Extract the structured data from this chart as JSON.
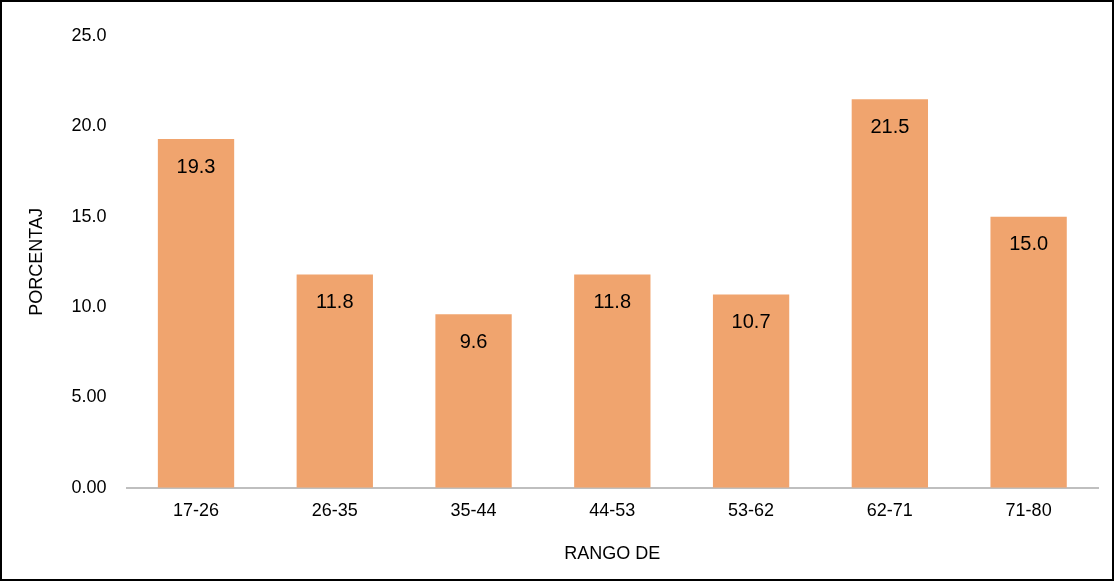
{
  "chart_data": {
    "type": "bar",
    "xlabel": "RANGO DE",
    "ylabel": "PORCENTAJ",
    "categories": [
      "17-26",
      "26-35",
      "35-44",
      "44-53",
      "53-62",
      "62-71",
      "71-80"
    ],
    "values": [
      19.3,
      11.8,
      9.6,
      11.8,
      10.7,
      21.5,
      15.0
    ],
    "value_labels": [
      "19.3",
      "11.8",
      "9.6",
      "11.8",
      "10.7",
      "21.5",
      "15.0"
    ],
    "color": "#f0a46e",
    "ylim": [
      0,
      25
    ],
    "yticks": [
      {
        "value": 0,
        "label": "0.00"
      },
      {
        "value": 5,
        "label": "5.00"
      },
      {
        "value": 10,
        "label": "10.0"
      },
      {
        "value": 15,
        "label": "15.0"
      },
      {
        "value": 20,
        "label": "20.0"
      },
      {
        "value": 25,
        "label": "25.0"
      }
    ],
    "grid": false,
    "legend": false
  }
}
